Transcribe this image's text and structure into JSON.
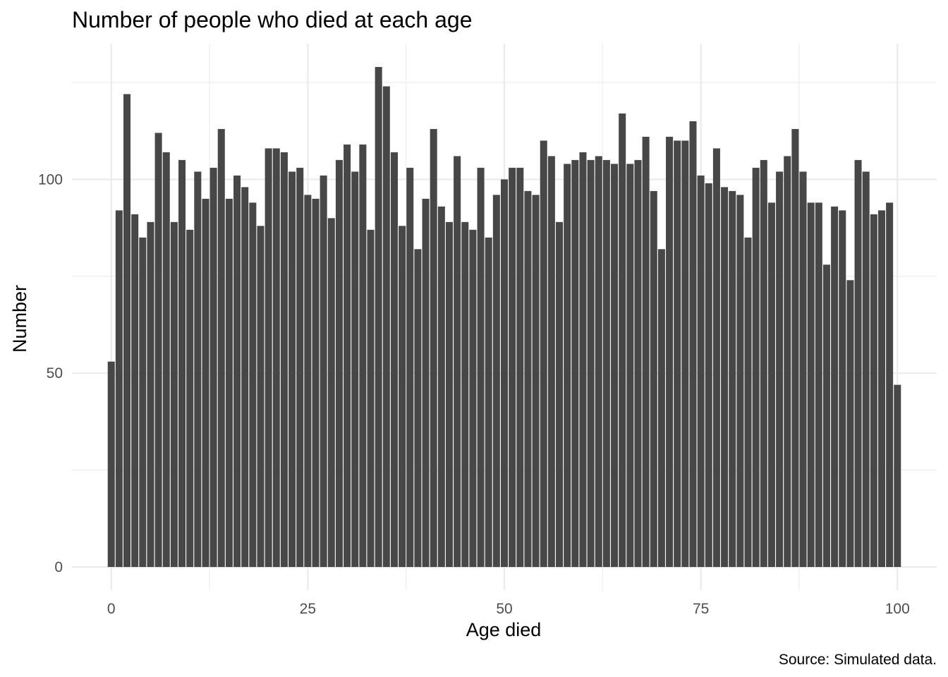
{
  "chart_data": {
    "type": "bar",
    "title": "Number of people who died at each age",
    "xlabel": "Age died",
    "ylabel": "Number",
    "caption": "Source: Simulated data.",
    "x_ticks": [
      "0",
      "25",
      "50",
      "75",
      "100"
    ],
    "y_ticks": [
      "0",
      "50",
      "100"
    ],
    "xlim": [
      -5,
      105
    ],
    "ylim": [
      -6,
      135
    ],
    "grid": true,
    "bar_color": "#474747",
    "categories": [
      0,
      1,
      2,
      3,
      4,
      5,
      6,
      7,
      8,
      9,
      10,
      11,
      12,
      13,
      14,
      15,
      16,
      17,
      18,
      19,
      20,
      21,
      22,
      23,
      24,
      25,
      26,
      27,
      28,
      29,
      30,
      31,
      32,
      33,
      34,
      35,
      36,
      37,
      38,
      39,
      40,
      41,
      42,
      43,
      44,
      45,
      46,
      47,
      48,
      49,
      50,
      51,
      52,
      53,
      54,
      55,
      56,
      57,
      58,
      59,
      60,
      61,
      62,
      63,
      64,
      65,
      66,
      67,
      68,
      69,
      70,
      71,
      72,
      73,
      74,
      75,
      76,
      77,
      78,
      79,
      80,
      81,
      82,
      83,
      84,
      85,
      86,
      87,
      88,
      89,
      90,
      91,
      92,
      93,
      94,
      95,
      96,
      97,
      98,
      99,
      100
    ],
    "values": [
      53,
      92,
      122,
      91,
      85,
      89,
      112,
      107,
      89,
      105,
      87,
      102,
      95,
      103,
      113,
      95,
      101,
      98,
      94,
      88,
      108,
      108,
      107,
      102,
      103,
      96,
      95,
      101,
      90,
      105,
      109,
      102,
      109,
      87,
      129,
      124,
      107,
      88,
      103,
      82,
      95,
      113,
      93,
      89,
      106,
      89,
      87,
      103,
      85,
      96,
      100,
      103,
      103,
      97,
      96,
      110,
      106,
      89,
      104,
      105,
      107,
      105,
      106,
      105,
      104,
      117,
      104,
      105,
      111,
      97,
      82,
      111,
      110,
      110,
      115,
      101,
      99,
      108,
      98,
      97,
      96,
      85,
      103,
      105,
      94,
      102,
      106,
      113,
      102,
      94,
      94,
      78,
      93,
      92,
      74,
      105,
      102,
      91,
      92,
      94,
      47
    ]
  }
}
